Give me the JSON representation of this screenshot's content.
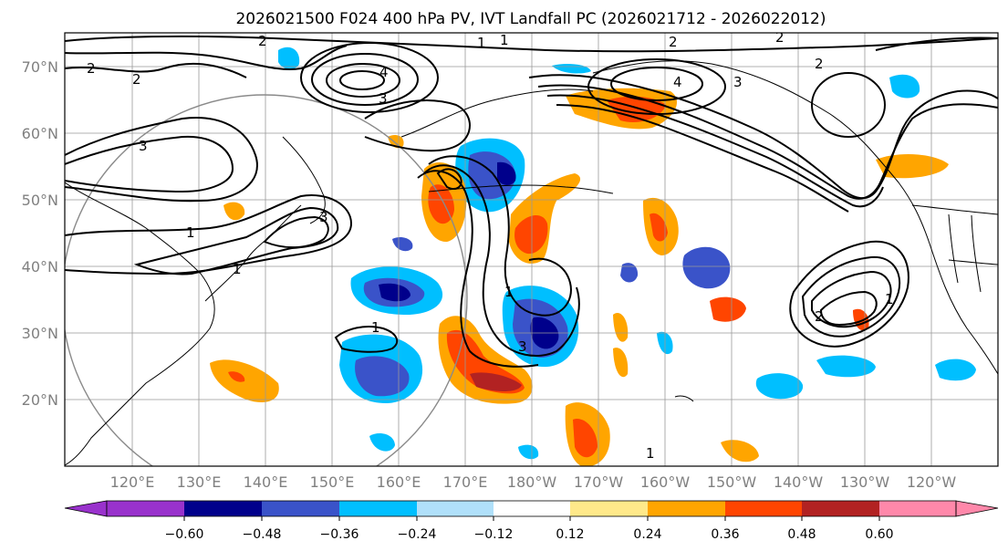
{
  "figure": {
    "title": "2026021500 F024 400 hPa PV, IVT Landfall PC (2026021712 - 2026022012)"
  },
  "map": {
    "lat_labels": [
      "70°N",
      "60°N",
      "50°N",
      "40°N",
      "30°N",
      "20°N"
    ],
    "lon_labels": [
      "120°E",
      "130°E",
      "140°E",
      "150°E",
      "160°E",
      "170°E",
      "180°W",
      "170°W",
      "160°W",
      "150°W",
      "140°W",
      "130°W",
      "120°W"
    ],
    "contour_labels": [
      "1",
      "1",
      "2",
      "2",
      "2",
      "2",
      "2",
      "2",
      "3",
      "3",
      "3",
      "3",
      "4",
      "4",
      "1",
      "1",
      "1",
      "2",
      "3",
      "1",
      "1",
      "1"
    ]
  },
  "colorbar": {
    "ticks": [
      "−0.60",
      "−0.48",
      "−0.36",
      "−0.24",
      "−0.12",
      "0.12",
      "0.24",
      "0.36",
      "0.48",
      "0.60"
    ],
    "colors": [
      "#9932cc",
      "#00008b",
      "#3a53c9",
      "#00bfff",
      "#b0e0fa",
      "#ffffff",
      "#ffe98a",
      "#ffa500",
      "#ff4500",
      "#b22222",
      "#ff88aa"
    ]
  }
}
